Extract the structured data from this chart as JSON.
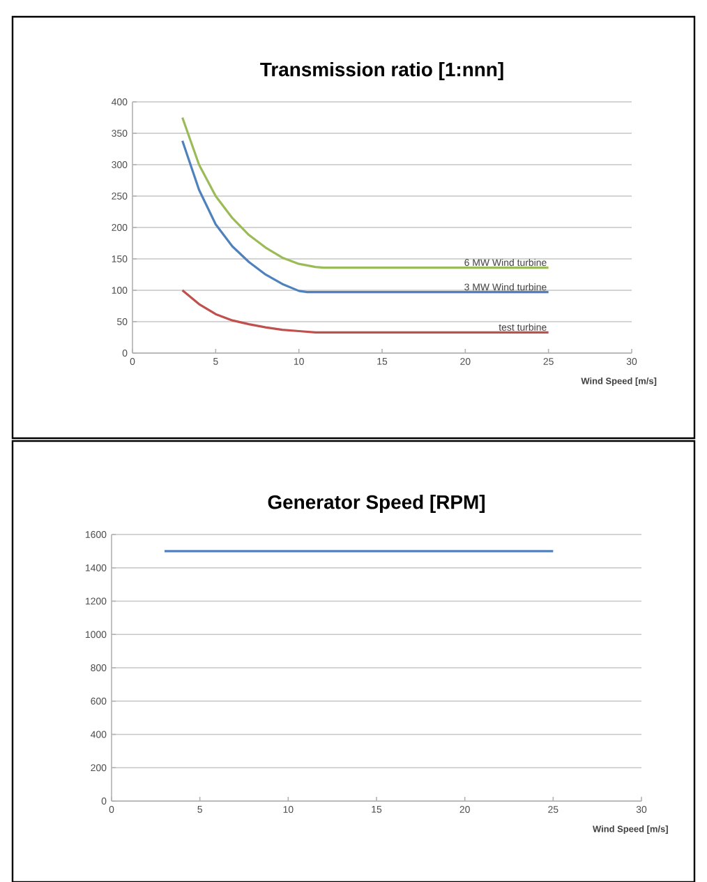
{
  "chart_data": [
    {
      "type": "line",
      "title": "Transmission ratio [1:nnn]",
      "xlabel": "Wind Speed [m/s]",
      "xlim": [
        0,
        30
      ],
      "xticks": [
        0,
        5,
        10,
        15,
        20,
        25,
        30
      ],
      "ylim": [
        0,
        400
      ],
      "yticks": [
        0,
        50,
        100,
        150,
        200,
        250,
        300,
        350,
        400
      ],
      "grid": "y",
      "series": [
        {
          "name": "6 MW Wind turbine",
          "color": "#9bbb59",
          "x": [
            3,
            4,
            5,
            6,
            7,
            8,
            9,
            10,
            11,
            11.5,
            25
          ],
          "values": [
            375,
            300,
            250,
            215,
            188,
            168,
            152,
            142,
            137,
            136,
            136
          ]
        },
        {
          "name": "3 MW Wind turbine",
          "color": "#4f81bd",
          "x": [
            3,
            4,
            5,
            6,
            7,
            8,
            9,
            10,
            10.5,
            25
          ],
          "values": [
            338,
            260,
            205,
            170,
            145,
            125,
            110,
            99,
            97,
            97
          ]
        },
        {
          "name": "test turbine",
          "color": "#c0504d",
          "x": [
            3,
            4,
            5,
            6,
            7,
            8,
            9,
            10,
            11,
            25
          ],
          "values": [
            100,
            78,
            62,
            52,
            46,
            41,
            37,
            35,
            33,
            33
          ]
        }
      ]
    },
    {
      "type": "line",
      "title": "Generator Speed [RPM]",
      "xlabel": "Wind Speed [m/s]",
      "xlim": [
        0,
        30
      ],
      "xticks": [
        0,
        5,
        10,
        15,
        20,
        25,
        30
      ],
      "ylim": [
        0,
        1600
      ],
      "yticks": [
        0,
        200,
        400,
        600,
        800,
        1000,
        1200,
        1400,
        1600
      ],
      "grid": "y",
      "series": [
        {
          "color": "#4f81bd",
          "x": [
            3,
            25
          ],
          "values": [
            1500,
            1500
          ]
        }
      ]
    }
  ]
}
